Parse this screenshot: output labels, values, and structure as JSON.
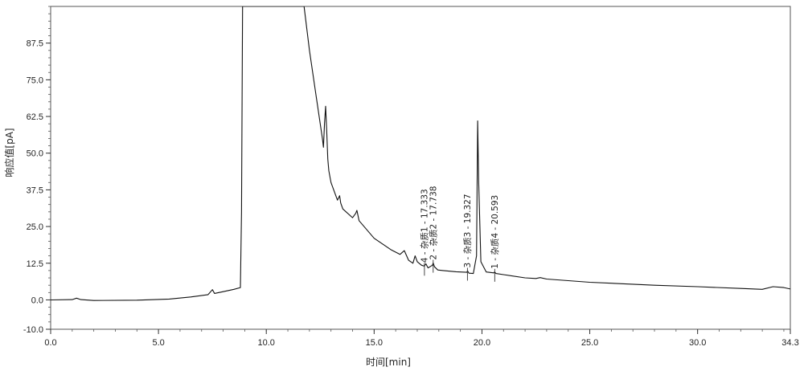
{
  "chart_data": {
    "type": "line",
    "title": "",
    "xlabel": "时间[min]",
    "ylabel": "响应值[pA]",
    "xlim": [
      0.0,
      34.3
    ],
    "ylim": [
      -10.0,
      100.0
    ],
    "x_ticks": [
      "0.0",
      "5.0",
      "10.0",
      "15.0",
      "20.0",
      "25.0",
      "30.0",
      "34.3"
    ],
    "y_ticks": [
      "-10.0",
      "0.0",
      "12.5",
      "25.0",
      "37.5",
      "50.0",
      "62.5",
      "75.0",
      "87.5"
    ],
    "grid": false,
    "legend": "none",
    "line_color": "#111111",
    "series": [
      {
        "x": [
          0.0,
          1.0,
          1.2,
          1.4,
          2.0,
          4.0,
          5.5,
          6.5,
          7.3,
          7.5,
          7.6,
          8.0,
          8.5,
          8.8,
          8.85,
          8.9,
          11.75,
          12.0,
          12.3,
          12.5,
          12.6,
          12.65,
          12.7,
          12.75,
          12.8,
          12.85,
          12.9,
          13.0,
          13.3,
          13.4,
          13.45,
          13.55,
          14.0,
          14.15,
          14.2,
          14.3,
          15.0,
          15.8,
          16.2,
          16.4,
          16.6,
          16.8,
          16.9,
          17.0,
          17.2,
          17.33,
          17.4,
          17.5,
          17.7,
          17.74,
          17.8,
          17.95,
          18.2,
          18.8,
          19.3,
          19.33,
          19.4,
          19.6,
          19.75,
          19.8,
          19.85,
          19.95,
          20.2,
          20.55,
          20.59,
          20.65,
          21.0,
          22.0,
          22.5,
          22.7,
          23.0,
          25.0,
          28.0,
          30.0,
          32.0,
          33.0,
          33.5,
          34.0,
          34.3
        ],
        "y": [
          0.0,
          0.1,
          0.6,
          0.1,
          -0.2,
          -0.1,
          0.3,
          1.0,
          1.8,
          3.5,
          2.2,
          2.8,
          3.6,
          4.2,
          30.0,
          100.0,
          100.0,
          85.0,
          70.0,
          60.0,
          55.0,
          52.0,
          60.0,
          66.0,
          58.0,
          48.0,
          44.0,
          40.0,
          34.0,
          35.5,
          33.0,
          31.0,
          28.0,
          29.5,
          30.5,
          27.0,
          21.0,
          17.0,
          15.5,
          16.8,
          13.5,
          12.5,
          15.0,
          13.0,
          11.8,
          11.5,
          12.3,
          10.9,
          11.8,
          12.6,
          11.3,
          10.2,
          10.0,
          9.6,
          9.4,
          9.9,
          9.1,
          9.0,
          15.0,
          61.0,
          40.0,
          13.0,
          9.5,
          9.2,
          9.5,
          9.0,
          8.6,
          7.5,
          7.3,
          7.6,
          7.1,
          6.0,
          5.0,
          4.5,
          3.9,
          3.6,
          4.5,
          4.2,
          3.7
        ]
      }
    ],
    "annotations": [
      {
        "text": "4 - 杂质1 - 17.333",
        "x": 17.333
      },
      {
        "text": "2 - 杂质2 - 17.738",
        "x": 17.738
      },
      {
        "text": "3 - 杂质3 - 19.327",
        "x": 19.327
      },
      {
        "text": "1 - 杂质4 - 20.593",
        "x": 20.593
      }
    ]
  }
}
